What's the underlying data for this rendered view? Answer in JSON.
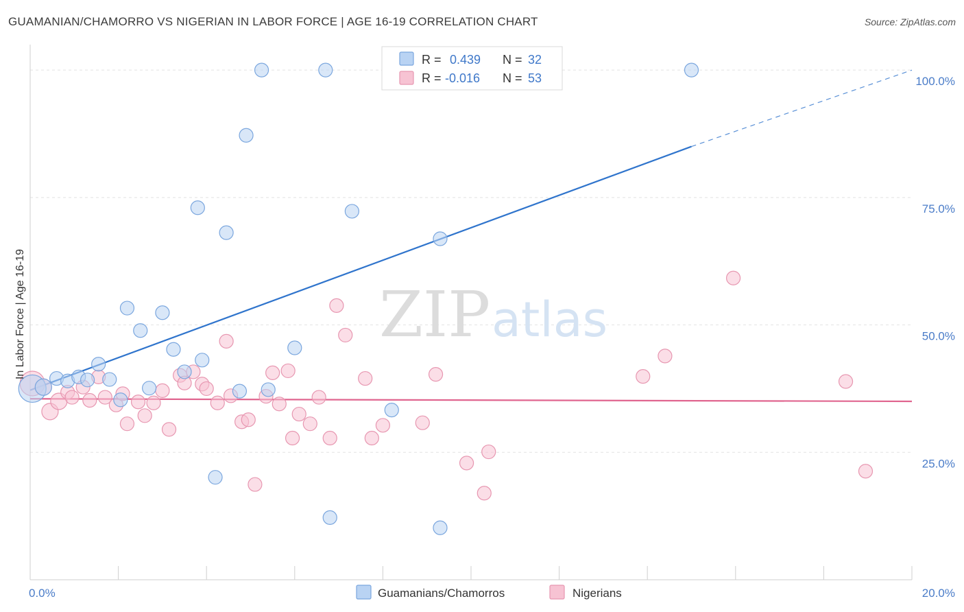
{
  "header": {
    "title": "GUAMANIAN/CHAMORRO VS NIGERIAN IN LABOR FORCE | AGE 16-19 CORRELATION CHART",
    "source": "Source: ZipAtlas.com"
  },
  "watermark": {
    "zip": "ZIP",
    "atlas": "atlas"
  },
  "colors": {
    "blue_fill": "#b9d3f3",
    "blue_stroke": "#7aa6de",
    "blue_line": "#2f74cc",
    "pink_fill": "#f7c3d3",
    "pink_stroke": "#e796b0",
    "pink_line": "#e0658f",
    "grid": "#e2e2e2",
    "tick_label": "#4a7cc8"
  },
  "legend": {
    "r_label": "R =",
    "n_label": "N =",
    "rows": [
      {
        "r": "0.439",
        "n": "32"
      },
      {
        "r": "-0.016",
        "n": "53"
      }
    ]
  },
  "chart_data": {
    "type": "scatter",
    "title": "GUAMANIAN/CHAMORRO VS NIGERIAN IN LABOR FORCE | AGE 16-19 CORRELATION CHART",
    "xlabel": "",
    "ylabel": "In Labor Force | Age 16-19",
    "xlim": [
      0,
      20
    ],
    "ylim": [
      0,
      105
    ],
    "x_tick_labels": [
      "0.0%",
      "20.0%"
    ],
    "y_ticks": [
      25,
      50,
      75,
      100
    ],
    "y_tick_labels": [
      "25.0%",
      "50.0%",
      "75.0%",
      "100.0%"
    ],
    "grid": true,
    "legend_position": "bottom",
    "series": [
      {
        "name": "Guamanians/Chamorros",
        "r": 0.439,
        "n": 32,
        "trend": {
          "x0": 0,
          "y0": 37.2,
          "x1": 15.0,
          "y1": 85.0,
          "dashed_to_x": 20.0,
          "dashed_to_y": 100.0
        },
        "points": [
          [
            0.05,
            37.5,
            20
          ],
          [
            0.3,
            37.8,
            12
          ],
          [
            0.6,
            39.5,
            10
          ],
          [
            0.85,
            39.0,
            10
          ],
          [
            1.1,
            39.8,
            10
          ],
          [
            1.3,
            39.2,
            10
          ],
          [
            1.55,
            42.3,
            10
          ],
          [
            1.8,
            39.3,
            10
          ],
          [
            2.05,
            35.3,
            10
          ],
          [
            2.2,
            53.3,
            10
          ],
          [
            2.5,
            48.9,
            10
          ],
          [
            2.7,
            37.6,
            10
          ],
          [
            3.0,
            52.4,
            10
          ],
          [
            3.25,
            45.2,
            10
          ],
          [
            3.5,
            40.8,
            10
          ],
          [
            3.8,
            73.0,
            10
          ],
          [
            3.9,
            43.1,
            10
          ],
          [
            4.2,
            20.1,
            10
          ],
          [
            4.45,
            68.1,
            10
          ],
          [
            4.75,
            37.0,
            10
          ],
          [
            4.9,
            87.2,
            10
          ],
          [
            5.25,
            100.0,
            10
          ],
          [
            5.4,
            37.3,
            10
          ],
          [
            6.0,
            45.5,
            10
          ],
          [
            6.7,
            100.0,
            10
          ],
          [
            6.8,
            12.2,
            10
          ],
          [
            7.3,
            72.3,
            10
          ],
          [
            8.2,
            33.3,
            10
          ],
          [
            9.3,
            10.2,
            10
          ],
          [
            9.3,
            66.9,
            10
          ],
          [
            10.6,
            100.0,
            10
          ],
          [
            15.0,
            100.0,
            10
          ]
        ]
      },
      {
        "name": "Nigerians",
        "r": -0.016,
        "n": 53,
        "trend": {
          "x0": 0,
          "y0": 35.5,
          "x1": 20.0,
          "y1": 35.0
        },
        "points": [
          [
            0.05,
            38.5,
            18
          ],
          [
            0.3,
            37.8,
            12
          ],
          [
            0.45,
            33.0,
            12
          ],
          [
            0.65,
            35.0,
            12
          ],
          [
            0.85,
            36.8,
            10
          ],
          [
            0.95,
            35.8,
            10
          ],
          [
            1.2,
            37.8,
            10
          ],
          [
            1.35,
            35.2,
            10
          ],
          [
            1.55,
            39.8,
            10
          ],
          [
            1.7,
            35.8,
            10
          ],
          [
            1.95,
            34.3,
            10
          ],
          [
            2.1,
            36.5,
            10
          ],
          [
            2.2,
            30.6,
            10
          ],
          [
            2.45,
            34.9,
            10
          ],
          [
            2.6,
            32.2,
            10
          ],
          [
            2.8,
            34.7,
            10
          ],
          [
            3.0,
            37.1,
            10
          ],
          [
            3.15,
            29.5,
            10
          ],
          [
            3.4,
            40.1,
            10
          ],
          [
            3.5,
            38.6,
            10
          ],
          [
            3.7,
            40.8,
            10
          ],
          [
            3.9,
            38.4,
            10
          ],
          [
            4.0,
            37.5,
            10
          ],
          [
            4.25,
            34.7,
            10
          ],
          [
            4.45,
            46.8,
            10
          ],
          [
            4.55,
            36.1,
            10
          ],
          [
            4.8,
            31.0,
            10
          ],
          [
            4.95,
            31.4,
            10
          ],
          [
            5.1,
            18.7,
            10
          ],
          [
            5.35,
            36.0,
            10
          ],
          [
            5.5,
            40.6,
            10
          ],
          [
            5.65,
            34.5,
            10
          ],
          [
            5.85,
            41.0,
            10
          ],
          [
            5.95,
            27.8,
            10
          ],
          [
            6.1,
            32.5,
            10
          ],
          [
            6.35,
            30.6,
            10
          ],
          [
            6.55,
            35.8,
            10
          ],
          [
            6.8,
            27.8,
            10
          ],
          [
            6.95,
            53.8,
            10
          ],
          [
            7.15,
            48.0,
            10
          ],
          [
            7.6,
            39.5,
            10
          ],
          [
            7.75,
            27.8,
            10
          ],
          [
            8.0,
            30.3,
            10
          ],
          [
            8.9,
            30.8,
            10
          ],
          [
            9.2,
            40.3,
            10
          ],
          [
            9.9,
            22.9,
            10
          ],
          [
            10.3,
            17.0,
            10
          ],
          [
            10.4,
            25.1,
            10
          ],
          [
            13.9,
            39.9,
            10
          ],
          [
            14.4,
            43.9,
            10
          ],
          [
            15.95,
            59.2,
            10
          ],
          [
            18.5,
            38.9,
            10
          ],
          [
            18.95,
            21.3,
            10
          ]
        ]
      }
    ]
  }
}
